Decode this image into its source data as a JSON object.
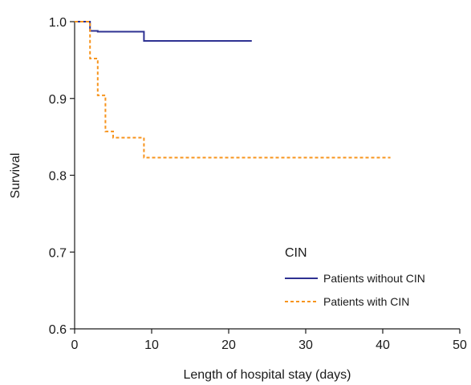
{
  "chart_data": {
    "type": "line",
    "xlabel": "Length of hospital stay (days)",
    "ylabel": "Survival",
    "xlim": [
      0,
      50
    ],
    "ylim": [
      0.6,
      1.0
    ],
    "x_ticks": [
      0,
      10,
      20,
      30,
      40,
      50
    ],
    "y_ticks": [
      0.6,
      0.7,
      0.8,
      0.9,
      1.0
    ],
    "x_tick_labels": [
      "0",
      "10",
      "20",
      "30",
      "40",
      "50"
    ],
    "y_tick_labels": [
      "0.6",
      "0.7",
      "0.8",
      "0.9",
      "1.0"
    ],
    "grid": false,
    "legend": {
      "title": "CIN",
      "placement": "bottom-right"
    },
    "series": [
      {
        "name": "Patients without CIN",
        "color": "#2e3192",
        "line_style": "solid",
        "step": true,
        "x": [
          0,
          2,
          3,
          9,
          23
        ],
        "y": [
          1.0,
          0.988,
          0.987,
          0.975,
          0.975
        ]
      },
      {
        "name": "Patients with CIN",
        "color": "#f7941d",
        "line_style": "dashed",
        "step": true,
        "x": [
          0,
          2,
          3,
          4,
          5,
          9,
          41
        ],
        "y": [
          1.0,
          0.952,
          0.904,
          0.857,
          0.849,
          0.823,
          0.823
        ]
      }
    ]
  }
}
